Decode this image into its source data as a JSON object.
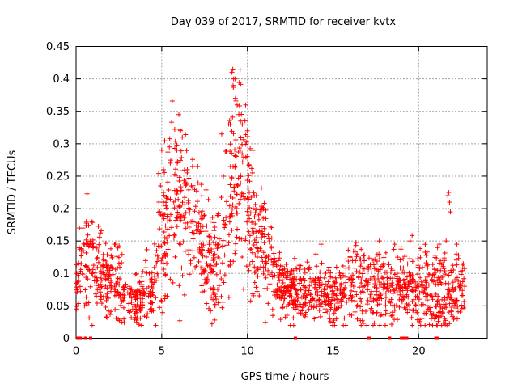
{
  "chart_data": {
    "type": "scatter",
    "title": "Day 039 of 2017, SRMTID for receiver kvtx",
    "xlabel": "GPS time / hours",
    "ylabel": "SRMTID / TECUs",
    "xlim": [
      0,
      24
    ],
    "ylim": [
      0,
      0.45
    ],
    "xticks": [
      0,
      5,
      10,
      15,
      20
    ],
    "yticks": [
      0,
      0.05,
      0.1,
      0.15,
      0.2,
      0.25,
      0.3,
      0.35,
      0.4,
      0.45
    ],
    "xtick_labels": [
      "0",
      "5",
      "10",
      "15",
      "20"
    ],
    "ytick_labels": [
      "0",
      "0.05",
      "0.1",
      "0.15",
      "0.2",
      "0.25",
      "0.3",
      "0.35",
      "0.4",
      "0.45"
    ],
    "grid": true,
    "marker": "+",
    "color": "#ff0000",
    "series": [
      {
        "name": "SRMTID",
        "profile": {
          "x": [
            0.0,
            0.5,
            1.0,
            1.5,
            2.0,
            2.5,
            3.0,
            3.5,
            4.0,
            4.5,
            5.0,
            5.5,
            6.0,
            6.5,
            7.0,
            7.5,
            8.0,
            8.5,
            9.0,
            9.5,
            10.0,
            10.5,
            11.0,
            11.5,
            12.0,
            12.5,
            13.0,
            14.0,
            15.0,
            16.0,
            17.0,
            18.0,
            19.0,
            20.0,
            21.0,
            22.0,
            23.0
          ],
          "y": [
            0.08,
            0.12,
            0.11,
            0.1,
            0.09,
            0.08,
            0.06,
            0.06,
            0.07,
            0.08,
            0.15,
            0.19,
            0.2,
            0.18,
            0.17,
            0.13,
            0.1,
            0.12,
            0.22,
            0.27,
            0.2,
            0.15,
            0.13,
            0.1,
            0.08,
            0.07,
            0.07,
            0.07,
            0.06,
            0.08,
            0.07,
            0.08,
            0.08,
            0.08,
            0.07,
            0.08,
            0.08
          ],
          "spread": [
            0.03,
            0.04,
            0.04,
            0.03,
            0.03,
            0.03,
            0.02,
            0.02,
            0.02,
            0.03,
            0.07,
            0.06,
            0.07,
            0.06,
            0.05,
            0.04,
            0.04,
            0.06,
            0.09,
            0.09,
            0.06,
            0.05,
            0.04,
            0.03,
            0.02,
            0.02,
            0.02,
            0.02,
            0.02,
            0.03,
            0.03,
            0.03,
            0.03,
            0.03,
            0.03,
            0.03,
            0.03
          ]
        },
        "point_count": 1800,
        "points": [
          [
            0.2,
            0.17
          ],
          [
            0.4,
            0.17
          ],
          [
            0.6,
            0.18
          ],
          [
            0.9,
            0.18
          ],
          [
            2.3,
            0.145
          ],
          [
            5.0,
            0.29
          ],
          [
            5.1,
            0.26
          ],
          [
            5.5,
            0.27
          ],
          [
            6.0,
            0.345
          ],
          [
            6.1,
            0.32
          ],
          [
            6.2,
            0.31
          ],
          [
            6.5,
            0.26
          ],
          [
            6.8,
            0.265
          ],
          [
            7.1,
            0.265
          ],
          [
            8.5,
            0.315
          ],
          [
            8.6,
            0.25
          ],
          [
            9.0,
            0.33
          ],
          [
            9.1,
            0.41
          ],
          [
            9.15,
            0.415
          ],
          [
            9.2,
            0.4
          ],
          [
            9.3,
            0.37
          ],
          [
            9.4,
            0.36
          ],
          [
            9.5,
            0.345
          ],
          [
            9.6,
            0.335
          ],
          [
            9.7,
            0.33
          ],
          [
            9.9,
            0.36
          ],
          [
            10.0,
            0.32
          ],
          [
            10.3,
            0.255
          ],
          [
            10.4,
            0.22
          ],
          [
            12.7,
            0.02
          ],
          [
            14.0,
            0.13
          ],
          [
            14.3,
            0.145
          ],
          [
            14.8,
            0.03
          ],
          [
            15.0,
            0.025
          ],
          [
            15.2,
            0.03
          ],
          [
            16.0,
            0.125
          ],
          [
            16.4,
            0.13
          ],
          [
            17.7,
            0.15
          ],
          [
            18.6,
            0.145
          ],
          [
            19.5,
            0.15
          ],
          [
            21.1,
            0.14
          ],
          [
            21.2,
            0.145
          ],
          [
            21.5,
            0.12
          ],
          [
            21.6,
            0.15
          ],
          [
            21.7,
            0.22
          ],
          [
            21.75,
            0.225
          ],
          [
            21.8,
            0.21
          ],
          [
            21.85,
            0.195
          ],
          [
            22.2,
            0.13
          ],
          [
            22.6,
            0.115
          ]
        ],
        "zero_points": [
          0.1,
          0.25,
          0.55,
          0.85,
          12.8,
          17.1,
          18.3,
          19.0,
          19.1,
          19.3,
          21.0,
          21.1
        ]
      }
    ]
  }
}
